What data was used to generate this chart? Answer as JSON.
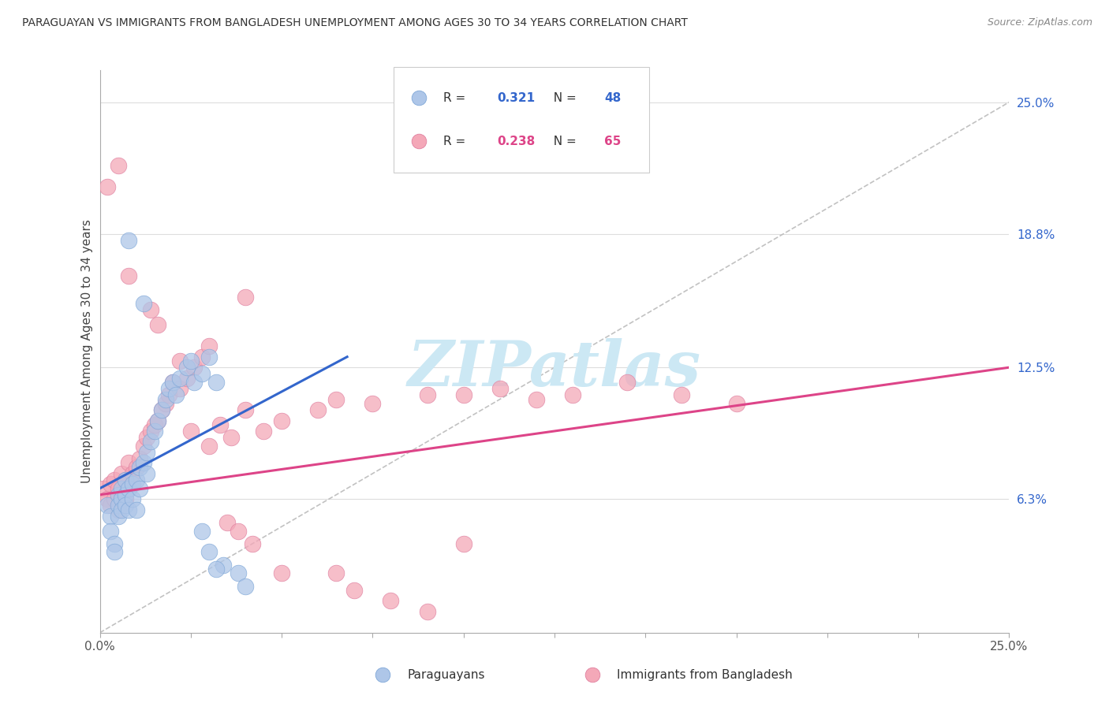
{
  "title": "PARAGUAYAN VS IMMIGRANTS FROM BANGLADESH UNEMPLOYMENT AMONG AGES 30 TO 34 YEARS CORRELATION CHART",
  "source": "Source: ZipAtlas.com",
  "ylabel": "Unemployment Among Ages 30 to 34 years",
  "xlim": [
    0.0,
    0.25
  ],
  "ylim": [
    0.0,
    0.265
  ],
  "ytick_vals": [
    0.063,
    0.125,
    0.188,
    0.25
  ],
  "ytick_labels": [
    "6.3%",
    "12.5%",
    "18.8%",
    "25.0%"
  ],
  "xtick_vals": [
    0.0,
    0.025,
    0.05,
    0.075,
    0.1,
    0.125,
    0.15,
    0.175,
    0.2,
    0.225,
    0.25
  ],
  "blue_R": "0.321",
  "blue_N": "48",
  "pink_R": "0.238",
  "pink_N": "65",
  "blue_color": "#aec6e8",
  "pink_color": "#f4a8b8",
  "blue_line_color": "#3366cc",
  "pink_line_color": "#dd4488",
  "diagonal_color": "#bbbbbb",
  "grid_color": "#dddddd",
  "watermark_color": "#cce8f4",
  "blue_scatter_x": [
    0.002,
    0.003,
    0.003,
    0.004,
    0.004,
    0.005,
    0.005,
    0.005,
    0.006,
    0.006,
    0.006,
    0.007,
    0.007,
    0.007,
    0.008,
    0.008,
    0.009,
    0.009,
    0.01,
    0.01,
    0.011,
    0.011,
    0.012,
    0.013,
    0.013,
    0.014,
    0.015,
    0.016,
    0.017,
    0.018,
    0.019,
    0.02,
    0.021,
    0.022,
    0.024,
    0.025,
    0.026,
    0.028,
    0.03,
    0.032,
    0.034,
    0.038,
    0.04,
    0.028,
    0.03,
    0.032,
    0.008,
    0.012
  ],
  "blue_scatter_y": [
    0.06,
    0.055,
    0.048,
    0.042,
    0.038,
    0.065,
    0.06,
    0.055,
    0.068,
    0.063,
    0.058,
    0.072,
    0.065,
    0.06,
    0.068,
    0.058,
    0.07,
    0.063,
    0.072,
    0.058,
    0.078,
    0.068,
    0.08,
    0.085,
    0.075,
    0.09,
    0.095,
    0.1,
    0.105,
    0.11,
    0.115,
    0.118,
    0.112,
    0.12,
    0.125,
    0.128,
    0.118,
    0.122,
    0.13,
    0.118,
    0.032,
    0.028,
    0.022,
    0.048,
    0.038,
    0.03,
    0.185,
    0.155
  ],
  "pink_scatter_x": [
    0.001,
    0.002,
    0.003,
    0.003,
    0.004,
    0.004,
    0.005,
    0.005,
    0.006,
    0.006,
    0.007,
    0.007,
    0.008,
    0.008,
    0.009,
    0.01,
    0.011,
    0.012,
    0.013,
    0.014,
    0.015,
    0.016,
    0.017,
    0.018,
    0.019,
    0.02,
    0.022,
    0.024,
    0.026,
    0.028,
    0.03,
    0.033,
    0.036,
    0.04,
    0.045,
    0.05,
    0.06,
    0.065,
    0.075,
    0.09,
    0.1,
    0.11,
    0.12,
    0.13,
    0.145,
    0.16,
    0.175,
    0.002,
    0.005,
    0.008,
    0.014,
    0.016,
    0.022,
    0.025,
    0.03,
    0.035,
    0.038,
    0.042,
    0.05,
    0.065,
    0.07,
    0.08,
    0.09,
    0.1,
    0.04
  ],
  "pink_scatter_y": [
    0.068,
    0.063,
    0.07,
    0.06,
    0.072,
    0.063,
    0.068,
    0.058,
    0.075,
    0.065,
    0.072,
    0.063,
    0.08,
    0.068,
    0.075,
    0.078,
    0.082,
    0.088,
    0.092,
    0.095,
    0.098,
    0.1,
    0.105,
    0.108,
    0.112,
    0.118,
    0.115,
    0.12,
    0.125,
    0.13,
    0.135,
    0.098,
    0.092,
    0.105,
    0.095,
    0.1,
    0.105,
    0.11,
    0.108,
    0.112,
    0.112,
    0.115,
    0.11,
    0.112,
    0.118,
    0.112,
    0.108,
    0.21,
    0.22,
    0.168,
    0.152,
    0.145,
    0.128,
    0.095,
    0.088,
    0.052,
    0.048,
    0.042,
    0.028,
    0.028,
    0.02,
    0.015,
    0.01,
    0.042,
    0.158
  ],
  "blue_line_x": [
    0.0,
    0.068
  ],
  "blue_line_y": [
    0.068,
    0.13
  ],
  "pink_line_x": [
    0.0,
    0.25
  ],
  "pink_line_y": [
    0.065,
    0.125
  ],
  "diag_line_x": [
    0.0,
    0.25
  ],
  "diag_line_y": [
    0.0,
    0.25
  ]
}
